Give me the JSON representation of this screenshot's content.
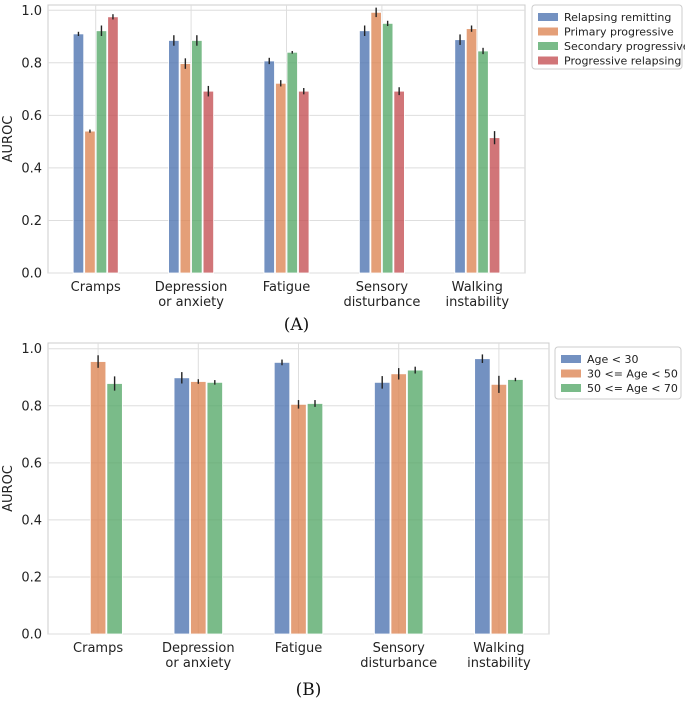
{
  "chart_data": [
    {
      "id": "A",
      "type": "bar",
      "caption": "(A)",
      "ylabel": "AUROC",
      "ylim": [
        0,
        1.02
      ],
      "yticks": [
        "0.0",
        "0.2",
        "0.4",
        "0.6",
        "0.8",
        "1.0"
      ],
      "grid": true,
      "legend_position": "right",
      "categories": [
        [
          "Cramps"
        ],
        [
          "Depression",
          "or anxiety"
        ],
        [
          "Fatigue"
        ],
        [
          "Sensory",
          "disturbance"
        ],
        [
          "Walking",
          "instability"
        ]
      ],
      "series": [
        {
          "name": "Relapsing remitting",
          "color": "#4c72b0",
          "values": [
            0.91,
            0.885,
            0.807,
            0.922,
            0.888
          ],
          "errors": [
            0.008,
            0.02,
            0.012,
            0.02,
            0.02
          ]
        },
        {
          "name": "Primary progressive",
          "color": "#dd8452",
          "values": [
            0.54,
            0.797,
            0.722,
            0.992,
            0.93
          ],
          "errors": [
            0.006,
            0.02,
            0.012,
            0.018,
            0.012
          ]
        },
        {
          "name": "Secondary progressive",
          "color": "#55a868",
          "values": [
            0.922,
            0.885,
            0.84,
            0.95,
            0.845
          ],
          "errors": [
            0.02,
            0.02,
            0.005,
            0.01,
            0.012
          ]
        },
        {
          "name": "Progressive relapsing",
          "color": "#c44e52",
          "values": [
            0.975,
            0.692,
            0.692,
            0.692,
            0.515
          ],
          "errors": [
            0.01,
            0.02,
            0.012,
            0.015,
            0.025
          ]
        }
      ]
    },
    {
      "id": "B",
      "type": "bar",
      "caption": "(B)",
      "ylabel": "AUROC",
      "ylim": [
        0,
        1.02
      ],
      "yticks": [
        "0.0",
        "0.2",
        "0.4",
        "0.6",
        "0.8",
        "1.0"
      ],
      "grid": true,
      "legend_position": "right",
      "categories": [
        [
          "Cramps"
        ],
        [
          "Depression",
          "or anxiety"
        ],
        [
          "Fatigue"
        ],
        [
          "Sensory",
          "disturbance"
        ],
        [
          "Walking",
          "instability"
        ]
      ],
      "series": [
        {
          "name": "Age < 30",
          "color": "#4c72b0",
          "values": [
            null,
            0.898,
            0.952,
            0.882,
            0.965
          ],
          "errors": [
            null,
            0.02,
            0.01,
            0.022,
            0.015
          ]
        },
        {
          "name": "30 <= Age < 50",
          "color": "#dd8452",
          "values": [
            0.955,
            0.885,
            0.805,
            0.912,
            0.875
          ],
          "errors": [
            0.022,
            0.008,
            0.015,
            0.02,
            0.03
          ]
        },
        {
          "name": "50 <= Age < 70",
          "color": "#55a868",
          "values": [
            0.878,
            0.882,
            0.808,
            0.925,
            0.892
          ],
          "errors": [
            0.025,
            0.008,
            0.012,
            0.012,
            0.006
          ]
        }
      ]
    }
  ]
}
